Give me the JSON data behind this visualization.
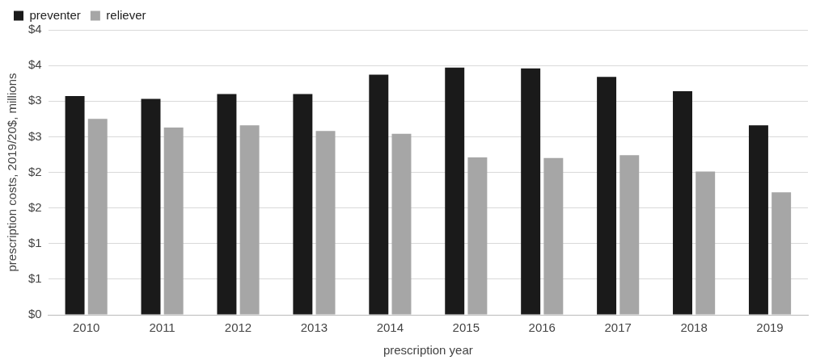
{
  "chart_data": {
    "type": "bar",
    "xlabel": "prescription year",
    "ylabel": "prescription costs, 2019/20$, millions",
    "categories": [
      "2010",
      "2011",
      "2012",
      "2013",
      "2014",
      "2015",
      "2016",
      "2017",
      "2018",
      "2019"
    ],
    "series": [
      {
        "name": "preventer",
        "color": "#1a1a1a",
        "values": [
          3.07,
          3.03,
          3.1,
          3.1,
          3.37,
          3.47,
          3.46,
          3.34,
          3.14,
          2.66
        ]
      },
      {
        "name": "reliever",
        "color": "#a6a6a6",
        "values": [
          2.75,
          2.63,
          2.66,
          2.58,
          2.54,
          2.21,
          2.2,
          2.24,
          2.01,
          1.72
        ]
      }
    ],
    "ylim": [
      0,
      4
    ],
    "yticks": [
      {
        "value": 0,
        "label": "$0"
      },
      {
        "value": 0.5,
        "label": "$1"
      },
      {
        "value": 1,
        "label": "$1"
      },
      {
        "value": 1.5,
        "label": "$2"
      },
      {
        "value": 2,
        "label": "$2"
      },
      {
        "value": 2.5,
        "label": "$3"
      },
      {
        "value": 3,
        "label": "$3"
      },
      {
        "value": 3.5,
        "label": "$4"
      },
      {
        "value": 4,
        "label": "$4"
      }
    ],
    "grid": "y",
    "legend": "top left"
  }
}
